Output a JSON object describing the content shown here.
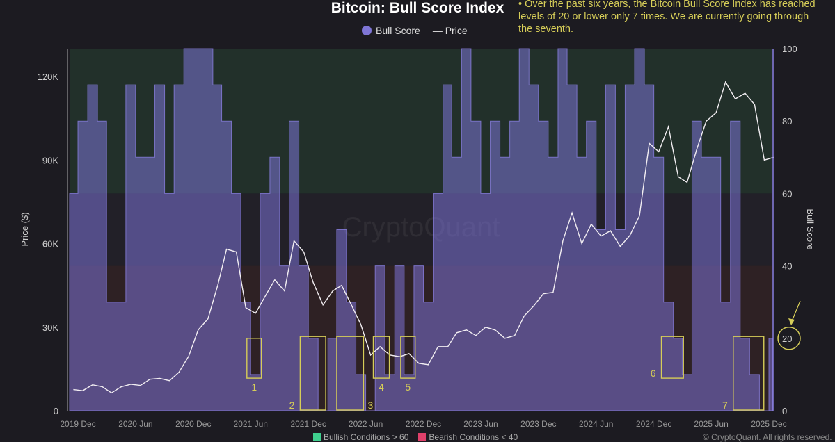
{
  "chart_data": {
    "type": "area+line",
    "title": "Bitcoin: Bull Score Index",
    "legend": [
      {
        "label": "Bull Score",
        "color": "#7f76d6",
        "marker": "circle"
      },
      {
        "label": "Price",
        "color": "#ffffff",
        "marker": "line"
      }
    ],
    "note": "• Over the past six years, the Bitcoin Bull Score Index has reached levels of 20 or lower only 7 times. We are currently going through the seventh.",
    "y_left": {
      "label": "Price ($)",
      "range": [
        0,
        130000
      ],
      "ticks": [
        0,
        30000,
        60000,
        90000,
        120000
      ],
      "tick_labels": [
        "0",
        "30K",
        "60K",
        "90K",
        "120K"
      ]
    },
    "y_right": {
      "label": "Bull Score",
      "range": [
        0,
        100
      ],
      "ticks": [
        0,
        20,
        40,
        60,
        80,
        100
      ],
      "tick_labels": [
        "0",
        "20",
        "40",
        "60",
        "80",
        "100"
      ]
    },
    "x": {
      "range": [
        "2019-11-05",
        "2025-12-20"
      ],
      "ticks": [
        "2019-12",
        "2020-06",
        "2020-12",
        "2021-06",
        "2021-12",
        "2022-06",
        "2022-12",
        "2023-06",
        "2023-12",
        "2024-06",
        "2024-12",
        "2025-06",
        "2025-12"
      ],
      "tick_labels": [
        "2019 Dec",
        "2020 Jun",
        "2020 Dec",
        "2021 Jun",
        "2021 Dec",
        "2022 Jun",
        "2022 Dec",
        "2023 Jun",
        "2023 Dec",
        "2024 Jun",
        "2024 Dec",
        "2025 Jun",
        "2025 Dec"
      ]
    },
    "zones": [
      {
        "label": "Bullish Conditions > 60",
        "from": 60,
        "to": 100,
        "color": "#22302a",
        "legend_color": "#3fcf8e"
      },
      {
        "label": "",
        "from": 40,
        "to": 60,
        "color": "#222028"
      },
      {
        "label": "Bearish Conditions < 40",
        "from": 0,
        "to": 40,
        "color": "#2e2124",
        "legend_color": "#e0406a"
      }
    ],
    "series": [
      {
        "name": "Bull Score",
        "color": "#8a80e0",
        "dates": [
          "2019-11",
          "2019-12",
          "2020-01",
          "2020-02",
          "2020-03",
          "2020-04",
          "2020-05",
          "2020-06",
          "2020-07",
          "2020-08",
          "2020-09",
          "2020-10",
          "2020-11",
          "2020-12",
          "2021-01",
          "2021-02",
          "2021-03",
          "2021-04",
          "2021-05",
          "2021-06",
          "2021-07",
          "2021-08",
          "2021-09",
          "2021-10",
          "2021-11",
          "2021-12",
          "2022-01",
          "2022-02",
          "2022-03",
          "2022-04",
          "2022-05",
          "2022-06",
          "2022-07",
          "2022-08",
          "2022-09",
          "2022-10",
          "2022-11",
          "2022-12",
          "2023-01",
          "2023-02",
          "2023-03",
          "2023-04",
          "2023-05",
          "2023-06",
          "2023-07",
          "2023-08",
          "2023-09",
          "2023-10",
          "2023-11",
          "2023-12",
          "2024-01",
          "2024-02",
          "2024-03",
          "2024-04",
          "2024-05",
          "2024-06",
          "2024-07",
          "2024-08",
          "2024-09",
          "2024-10",
          "2024-11",
          "2024-12",
          "2025-01",
          "2025-02",
          "2025-03",
          "2025-04",
          "2025-05",
          "2025-06",
          "2025-07",
          "2025-08",
          "2025-09",
          "2025-10",
          "2025-11",
          "2025-12"
        ],
        "values": [
          60,
          80,
          90,
          80,
          30,
          30,
          90,
          70,
          70,
          90,
          60,
          90,
          100,
          100,
          100,
          90,
          80,
          60,
          30,
          10,
          60,
          70,
          40,
          80,
          40,
          20,
          0,
          20,
          50,
          30,
          10,
          0,
          40,
          10,
          40,
          10,
          40,
          30,
          60,
          90,
          70,
          100,
          80,
          60,
          80,
          70,
          80,
          100,
          90,
          80,
          70,
          100,
          90,
          70,
          80,
          50,
          90,
          50,
          90,
          100,
          90,
          70,
          30,
          20,
          10,
          80,
          70,
          70,
          30,
          80,
          20,
          10,
          0,
          20
        ]
      },
      {
        "name": "Price",
        "color": "#f2eef2",
        "dates": [
          "2019-11",
          "2019-12",
          "2020-01",
          "2020-02",
          "2020-03",
          "2020-04",
          "2020-05",
          "2020-06",
          "2020-07",
          "2020-08",
          "2020-09",
          "2020-10",
          "2020-11",
          "2020-12",
          "2021-01",
          "2021-02",
          "2021-03",
          "2021-04",
          "2021-05",
          "2021-06",
          "2021-07",
          "2021-08",
          "2021-09",
          "2021-10",
          "2021-11",
          "2021-12",
          "2022-01",
          "2022-02",
          "2022-03",
          "2022-04",
          "2022-05",
          "2022-06",
          "2022-07",
          "2022-08",
          "2022-09",
          "2022-10",
          "2022-11",
          "2022-12",
          "2023-01",
          "2023-02",
          "2023-03",
          "2023-04",
          "2023-05",
          "2023-06",
          "2023-07",
          "2023-08",
          "2023-09",
          "2023-10",
          "2023-11",
          "2023-12",
          "2024-01",
          "2024-02",
          "2024-03",
          "2024-04",
          "2024-05",
          "2024-06",
          "2024-07",
          "2024-08",
          "2024-09",
          "2024-10",
          "2024-11",
          "2024-12",
          "2025-01",
          "2025-02",
          "2025-03",
          "2025-04",
          "2025-05",
          "2025-06",
          "2025-07",
          "2025-08",
          "2025-09",
          "2025-10",
          "2025-11",
          "2025-12"
        ],
        "values": [
          7600,
          7200,
          9300,
          8600,
          6400,
          8600,
          9500,
          9100,
          11300,
          11600,
          10800,
          13800,
          19600,
          29000,
          33000,
          45000,
          58000,
          57000,
          37000,
          35000,
          41000,
          47000,
          43000,
          61000,
          57000,
          46000,
          38000,
          43000,
          45000,
          38000,
          31000,
          20000,
          23000,
          20000,
          19400,
          20500,
          17000,
          16500,
          23000,
          23000,
          28000,
          29000,
          27000,
          30000,
          29000,
          26000,
          27000,
          34000,
          37700,
          42000,
          42500,
          61000,
          71000,
          60000,
          67000,
          62700,
          64600,
          59000,
          63000,
          70000,
          96000,
          93000,
          102000,
          84000,
          82000,
          94000,
          104000,
          107000,
          118000,
          112000,
          114000,
          110000,
          90000,
          91000
        ]
      }
    ],
    "annotations": [
      {
        "label": "1",
        "from": "2021-05-20",
        "to": "2021-07-05",
        "score_range": [
          9,
          20
        ]
      },
      {
        "label": "2",
        "from": "2021-11-05",
        "to": "2022-01-25",
        "score_range": [
          0,
          20.5
        ]
      },
      {
        "label": "3",
        "from": "2022-03-01",
        "to": "2022-05-25",
        "score_range": [
          0,
          20.5
        ]
      },
      {
        "label": "4",
        "from": "2022-06-25",
        "to": "2022-08-15",
        "score_range": [
          9,
          20.5
        ]
      },
      {
        "label": "5",
        "from": "2022-09-20",
        "to": "2022-11-05",
        "score_range": [
          9,
          20.5
        ]
      },
      {
        "label": "6",
        "from": "2024-12-25",
        "to": "2025-03-05",
        "score_range": [
          9,
          20.5
        ]
      },
      {
        "label": "7",
        "from": "2025-08-10",
        "to": "2025-11-15",
        "score_range": [
          0,
          20.5
        ]
      }
    ],
    "highlight_level": {
      "value": 20,
      "color": "#d6cd58"
    },
    "grid": false,
    "watermark": "CryptoQuant",
    "copyright": "© CryptoQuant. All rights reserved."
  }
}
